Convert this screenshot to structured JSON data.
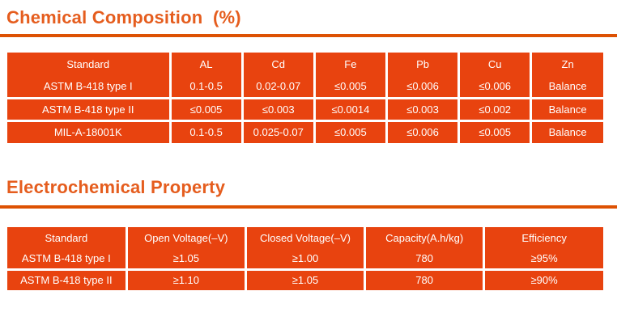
{
  "colors": {
    "table_fill": "#E8430F",
    "title_text": "#E55D1E",
    "divider": "#DD5103",
    "cell_text": "#FFFFFF"
  },
  "sections": [
    {
      "title": "Chemical Composition  (%)",
      "table": {
        "headers": [
          "Standard",
          "AL",
          "Cd",
          "Fe",
          "Pb",
          "Cu",
          "Zn"
        ],
        "rows": [
          [
            "ASTM B-418 type I",
            "0.1-0.5",
            "0.02-0.07",
            "≤0.005",
            "≤0.006",
            "≤0.006",
            "Balance"
          ],
          [
            "ASTM B-418 type II",
            "≤0.005",
            "≤0.003",
            "≤0.0014",
            "≤0.003",
            "≤0.002",
            "Balance"
          ],
          [
            "MIL-A-18001K",
            "0.1-0.5",
            "0.025-0.07",
            "≤0.005",
            "≤0.006",
            "≤0.005",
            "Balance"
          ]
        ]
      }
    },
    {
      "title": "Electrochemical Property",
      "table": {
        "headers": [
          "Standard",
          "Open Voltage(–V)",
          "Closed Voltage(–V)",
          "Capacity(A.h/kg)",
          "Efficiency"
        ],
        "rows": [
          [
            "ASTM B-418 type I",
            "≥1.05",
            "≥1.00",
            "780",
            "≥95%"
          ],
          [
            "ASTM B-418 type II",
            "≥1.10",
            "≥1.05",
            "780",
            "≥90%"
          ]
        ]
      }
    }
  ]
}
